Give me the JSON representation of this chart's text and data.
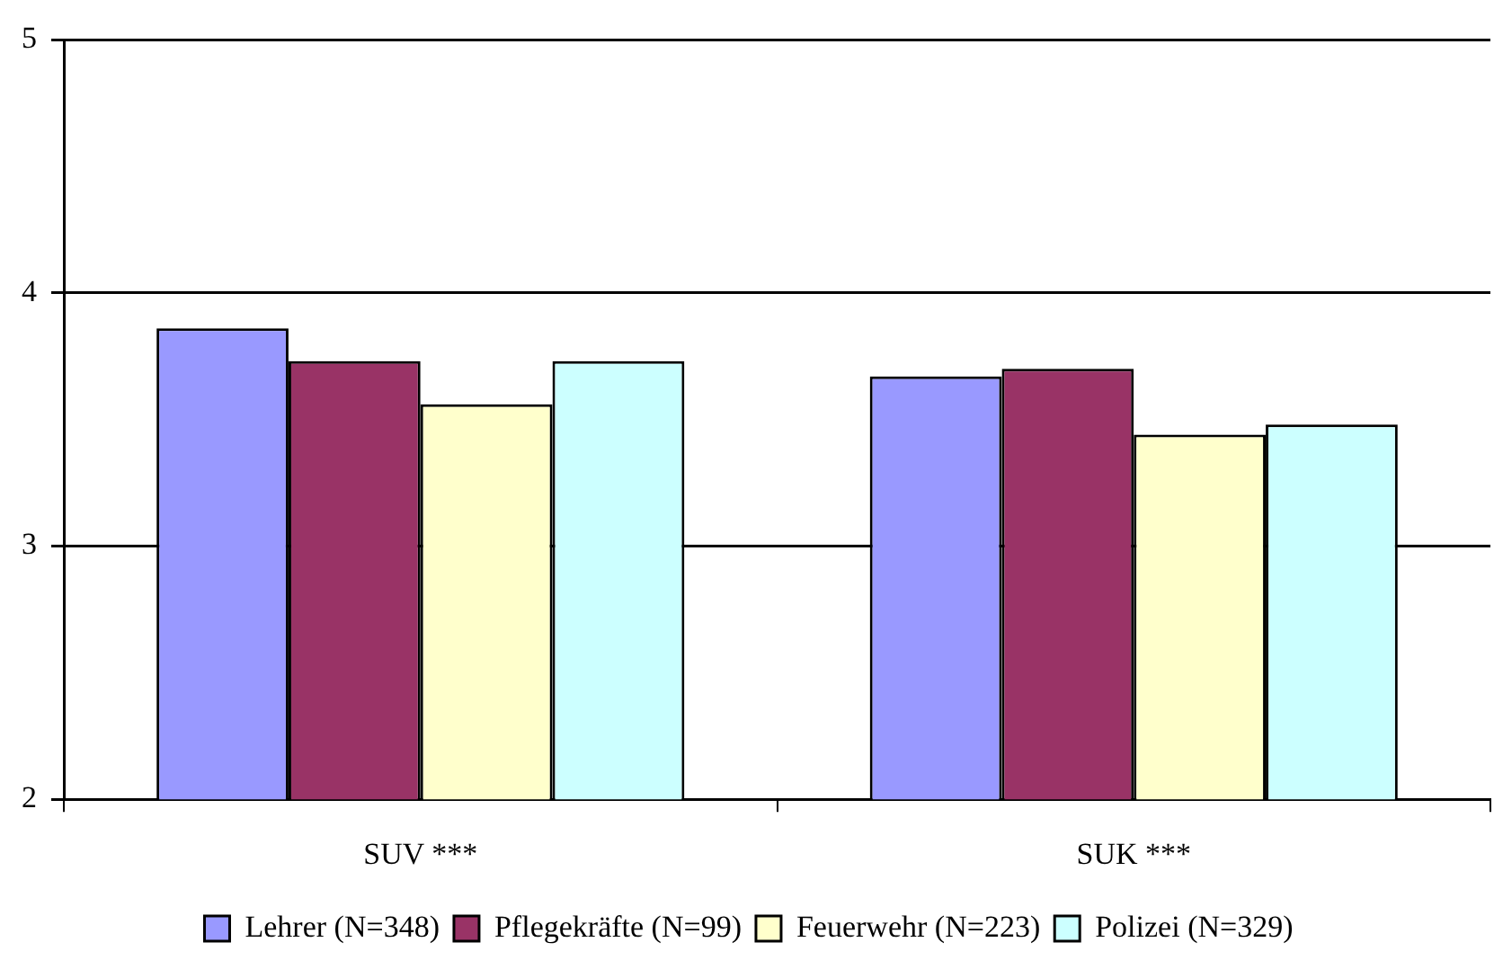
{
  "chart_data": {
    "type": "bar",
    "categories": [
      "SUV ***",
      "SUK ***"
    ],
    "series": [
      {
        "name": "Lehrer (N=348)",
        "color": "#9999ff",
        "values": [
          3.86,
          3.67
        ]
      },
      {
        "name": "Pflegekräfte (N=99)",
        "color": "#993366",
        "values": [
          3.73,
          3.7
        ]
      },
      {
        "name": "Feuerwehr (N=223)",
        "color": "#ffffcc",
        "values": [
          3.56,
          3.44
        ]
      },
      {
        "name": "Polizei (N=329)",
        "color": "#ccffff",
        "values": [
          3.73,
          3.48
        ]
      }
    ],
    "ylim": [
      2,
      5
    ],
    "yticks": [
      2,
      3,
      4,
      5
    ],
    "grid": "y",
    "legend": "bottom"
  }
}
